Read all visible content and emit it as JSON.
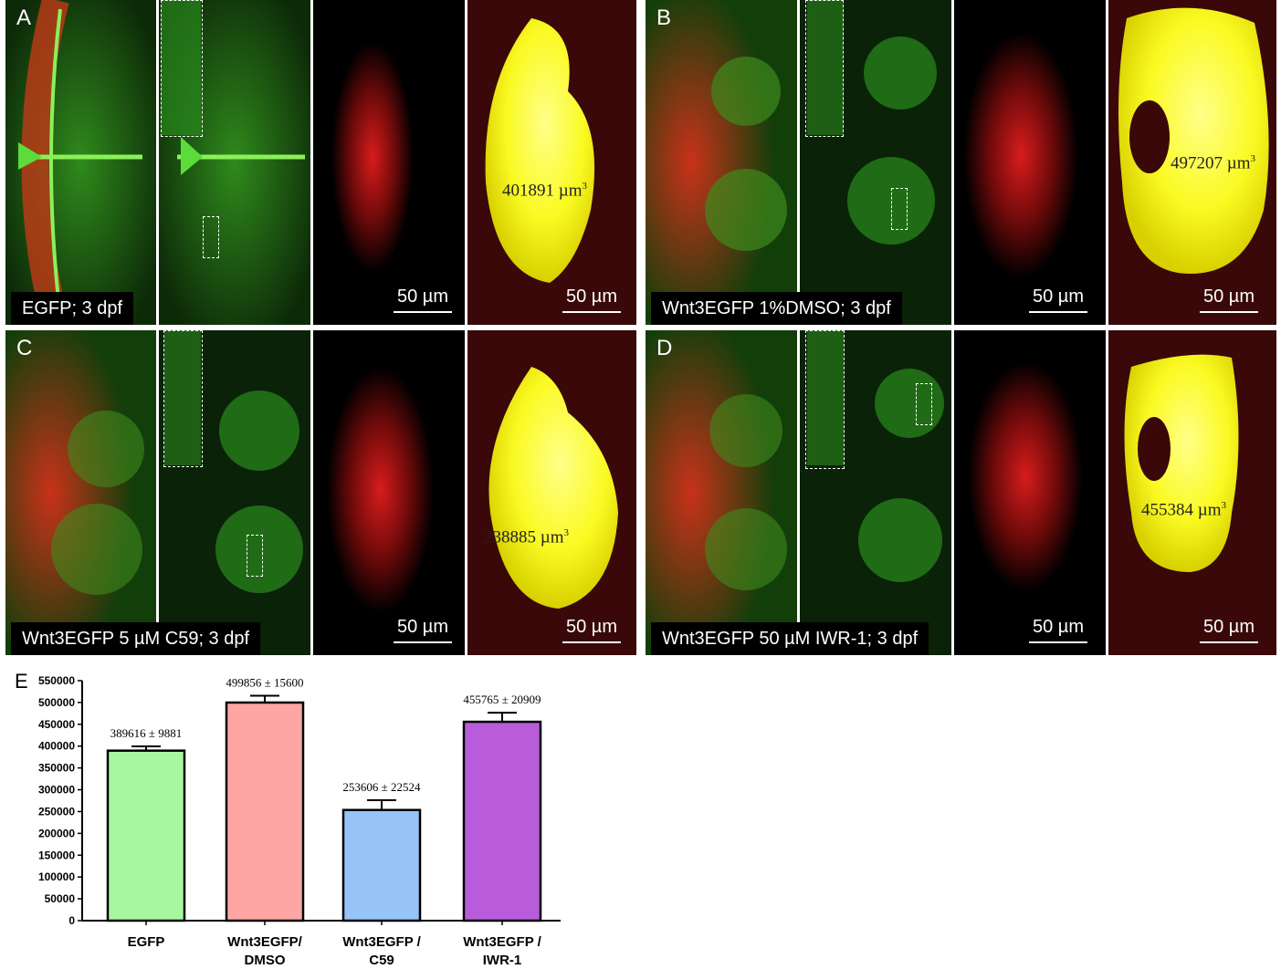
{
  "panels": {
    "A": {
      "letter": "A",
      "condition": "EGFP; 3 dpf",
      "volume": "401891 µm",
      "vol_exp": "3",
      "scale": "50 µm",
      "scale2": "50 µm"
    },
    "B": {
      "letter": "B",
      "condition": "Wnt3EGFP 1%DMSO; 3 dpf",
      "volume": "497207 µm",
      "vol_exp": "3",
      "scale": "50 µm",
      "scale2": "50 µm"
    },
    "C": {
      "letter": "C",
      "condition": "Wnt3EGFP 5 µM C59; 3 dpf",
      "volume": "238885 µm",
      "vol_exp": "3",
      "scale": "50 µm",
      "scale2": "50 µm"
    },
    "D": {
      "letter": "D",
      "condition": "Wnt3EGFP 50 µM IWR-1; 3 dpf",
      "volume": "455384 µm",
      "vol_exp": "3",
      "scale": "50 µm",
      "scale2": "50 µm"
    }
  },
  "chart_letter": "E",
  "chart_data": {
    "type": "bar",
    "categories": [
      "EGFP",
      "Wnt3EGFP/\nDMSO",
      "Wnt3EGFP /\nC59",
      "Wnt3EGFP /\nIWR-1"
    ],
    "values": [
      389616,
      499856,
      253606,
      455765
    ],
    "errors": [
      9881,
      15600,
      22524,
      20909
    ],
    "data_labels": [
      "389616 ± 9881",
      "499856 ± 15600",
      "253606 ± 22524",
      "455765 ± 20909"
    ],
    "colors": [
      "#a6f7a0",
      "#fda6a4",
      "#97c4f8",
      "#b85cdb"
    ],
    "ylim": [
      0,
      550000
    ],
    "yticks": [
      "0",
      "50000",
      "100000",
      "150000",
      "200000",
      "250000",
      "300000",
      "350000",
      "400000",
      "450000",
      "500000",
      "550000"
    ],
    "xlabel": "",
    "ylabel": ""
  }
}
